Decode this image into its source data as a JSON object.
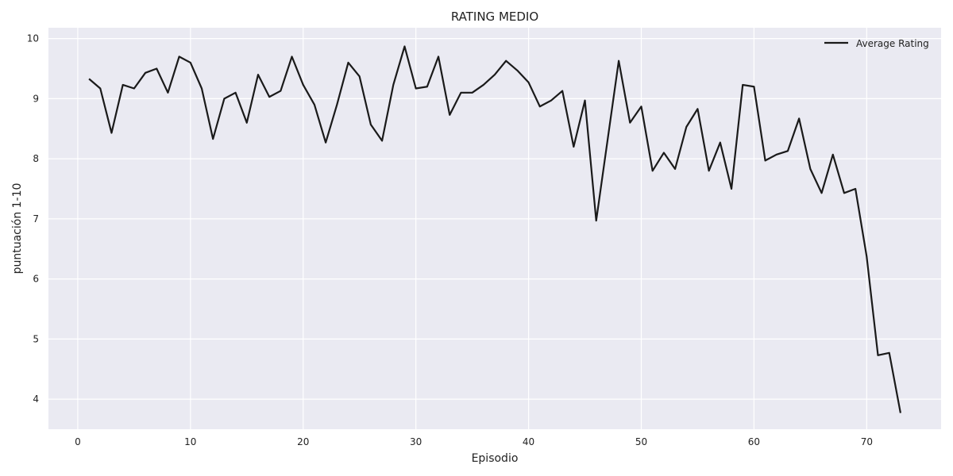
{
  "chart_data": {
    "type": "line",
    "title": "RATING MEDIO",
    "xlabel": "Episodio",
    "ylabel": "puntuación 1-10",
    "xlim": [
      -2.6,
      76.6
    ],
    "ylim": [
      3.5,
      10.18
    ],
    "xticks": [
      0,
      10,
      20,
      30,
      40,
      50,
      60,
      70
    ],
    "yticks": [
      4,
      5,
      6,
      7,
      8,
      9,
      10
    ],
    "grid": true,
    "legend_position": "top-right",
    "background_color": "#eaeaf2",
    "grid_color": "#ffffff",
    "series": [
      {
        "name": "Average Rating",
        "color": "#1a1a1a",
        "x": [
          1,
          2,
          3,
          4,
          5,
          6,
          7,
          8,
          9,
          10,
          11,
          12,
          13,
          14,
          15,
          16,
          17,
          18,
          19,
          20,
          21,
          22,
          23,
          24,
          25,
          26,
          27,
          28,
          29,
          30,
          31,
          32,
          33,
          34,
          35,
          36,
          37,
          38,
          39,
          40,
          41,
          42,
          43,
          44,
          45,
          46,
          47,
          48,
          49,
          50,
          51,
          52,
          53,
          54,
          55,
          56,
          57,
          58,
          59,
          60,
          61,
          62,
          63,
          64,
          65,
          66,
          67,
          68,
          69,
          70,
          71,
          72,
          73
        ],
        "values": [
          9.33,
          9.17,
          8.43,
          9.23,
          9.17,
          9.43,
          9.5,
          9.1,
          9.7,
          9.6,
          9.17,
          8.33,
          9.0,
          9.1,
          8.6,
          9.4,
          9.03,
          9.13,
          9.7,
          9.23,
          8.9,
          8.27,
          8.9,
          9.6,
          9.37,
          8.57,
          8.3,
          9.23,
          9.87,
          9.17,
          9.2,
          9.7,
          8.73,
          9.1,
          9.1,
          9.23,
          9.4,
          9.63,
          9.47,
          9.27,
          8.87,
          8.97,
          9.13,
          8.2,
          8.97,
          6.97,
          8.3,
          9.63,
          8.6,
          8.87,
          7.8,
          8.1,
          7.83,
          8.53,
          8.83,
          7.8,
          8.27,
          7.5,
          9.23,
          9.2,
          7.97,
          8.07,
          8.13,
          8.67,
          7.83,
          7.43,
          8.07,
          7.43,
          7.5,
          6.37,
          4.73,
          4.77,
          3.77
        ]
      }
    ]
  }
}
